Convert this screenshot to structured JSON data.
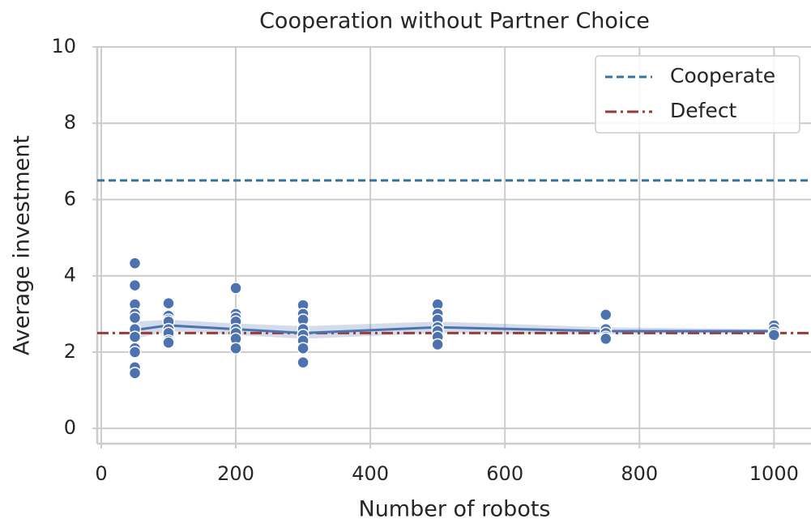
{
  "chart_data": {
    "type": "scatter",
    "title": "Cooperation without Partner Choice",
    "xlabel": "Number of robots",
    "ylabel": "Average investment",
    "xlim": [
      -6,
      1055
    ],
    "ylim": [
      -0.4,
      10
    ],
    "xticks": [
      0,
      200,
      400,
      600,
      800,
      1000
    ],
    "yticks": [
      0,
      2,
      4,
      6,
      8,
      10
    ],
    "grid": true,
    "legend": "upper right",
    "color": "#4c72b0",
    "points": {
      "x": [
        50,
        50,
        50,
        50,
        50,
        50,
        50,
        50,
        50,
        50,
        50,
        100,
        100,
        100,
        100,
        100,
        100,
        100,
        100,
        200,
        200,
        200,
        200,
        200,
        200,
        200,
        200,
        300,
        300,
        300,
        300,
        300,
        300,
        300,
        300,
        500,
        500,
        500,
        500,
        500,
        500,
        500,
        750,
        750,
        750,
        750,
        750,
        1000,
        1000,
        1000,
        1000
      ],
      "y": [
        4.33,
        3.75,
        3.25,
        3.0,
        2.9,
        2.6,
        2.4,
        2.1,
        2.0,
        1.6,
        1.45,
        3.28,
        2.95,
        2.85,
        2.8,
        2.6,
        2.5,
        2.3,
        2.25,
        3.68,
        3.0,
        2.9,
        2.8,
        2.6,
        2.5,
        2.35,
        2.1,
        3.23,
        3.0,
        2.85,
        2.6,
        2.45,
        2.3,
        2.1,
        1.73,
        3.25,
        3.0,
        2.85,
        2.65,
        2.55,
        2.4,
        2.2,
        2.98,
        2.6,
        2.5,
        2.4,
        2.35,
        2.7,
        2.6,
        2.5,
        2.45
      ]
    },
    "mean": {
      "x": [
        50,
        100,
        200,
        300,
        500,
        750,
        1000
      ],
      "values": [
        2.58,
        2.7,
        2.6,
        2.5,
        2.65,
        2.55,
        2.55
      ],
      "lower": [
        2.35,
        2.55,
        2.45,
        2.35,
        2.5,
        2.47,
        2.5
      ],
      "upper": [
        2.8,
        2.85,
        2.75,
        2.68,
        2.8,
        2.65,
        2.6
      ]
    },
    "reference_lines": [
      {
        "name": "Cooperate",
        "value": 6.5,
        "color": "#3274a1",
        "style": "dashed"
      },
      {
        "name": "Defect",
        "value": 2.5,
        "color": "#9a3a35",
        "style": "dashdot"
      }
    ]
  }
}
